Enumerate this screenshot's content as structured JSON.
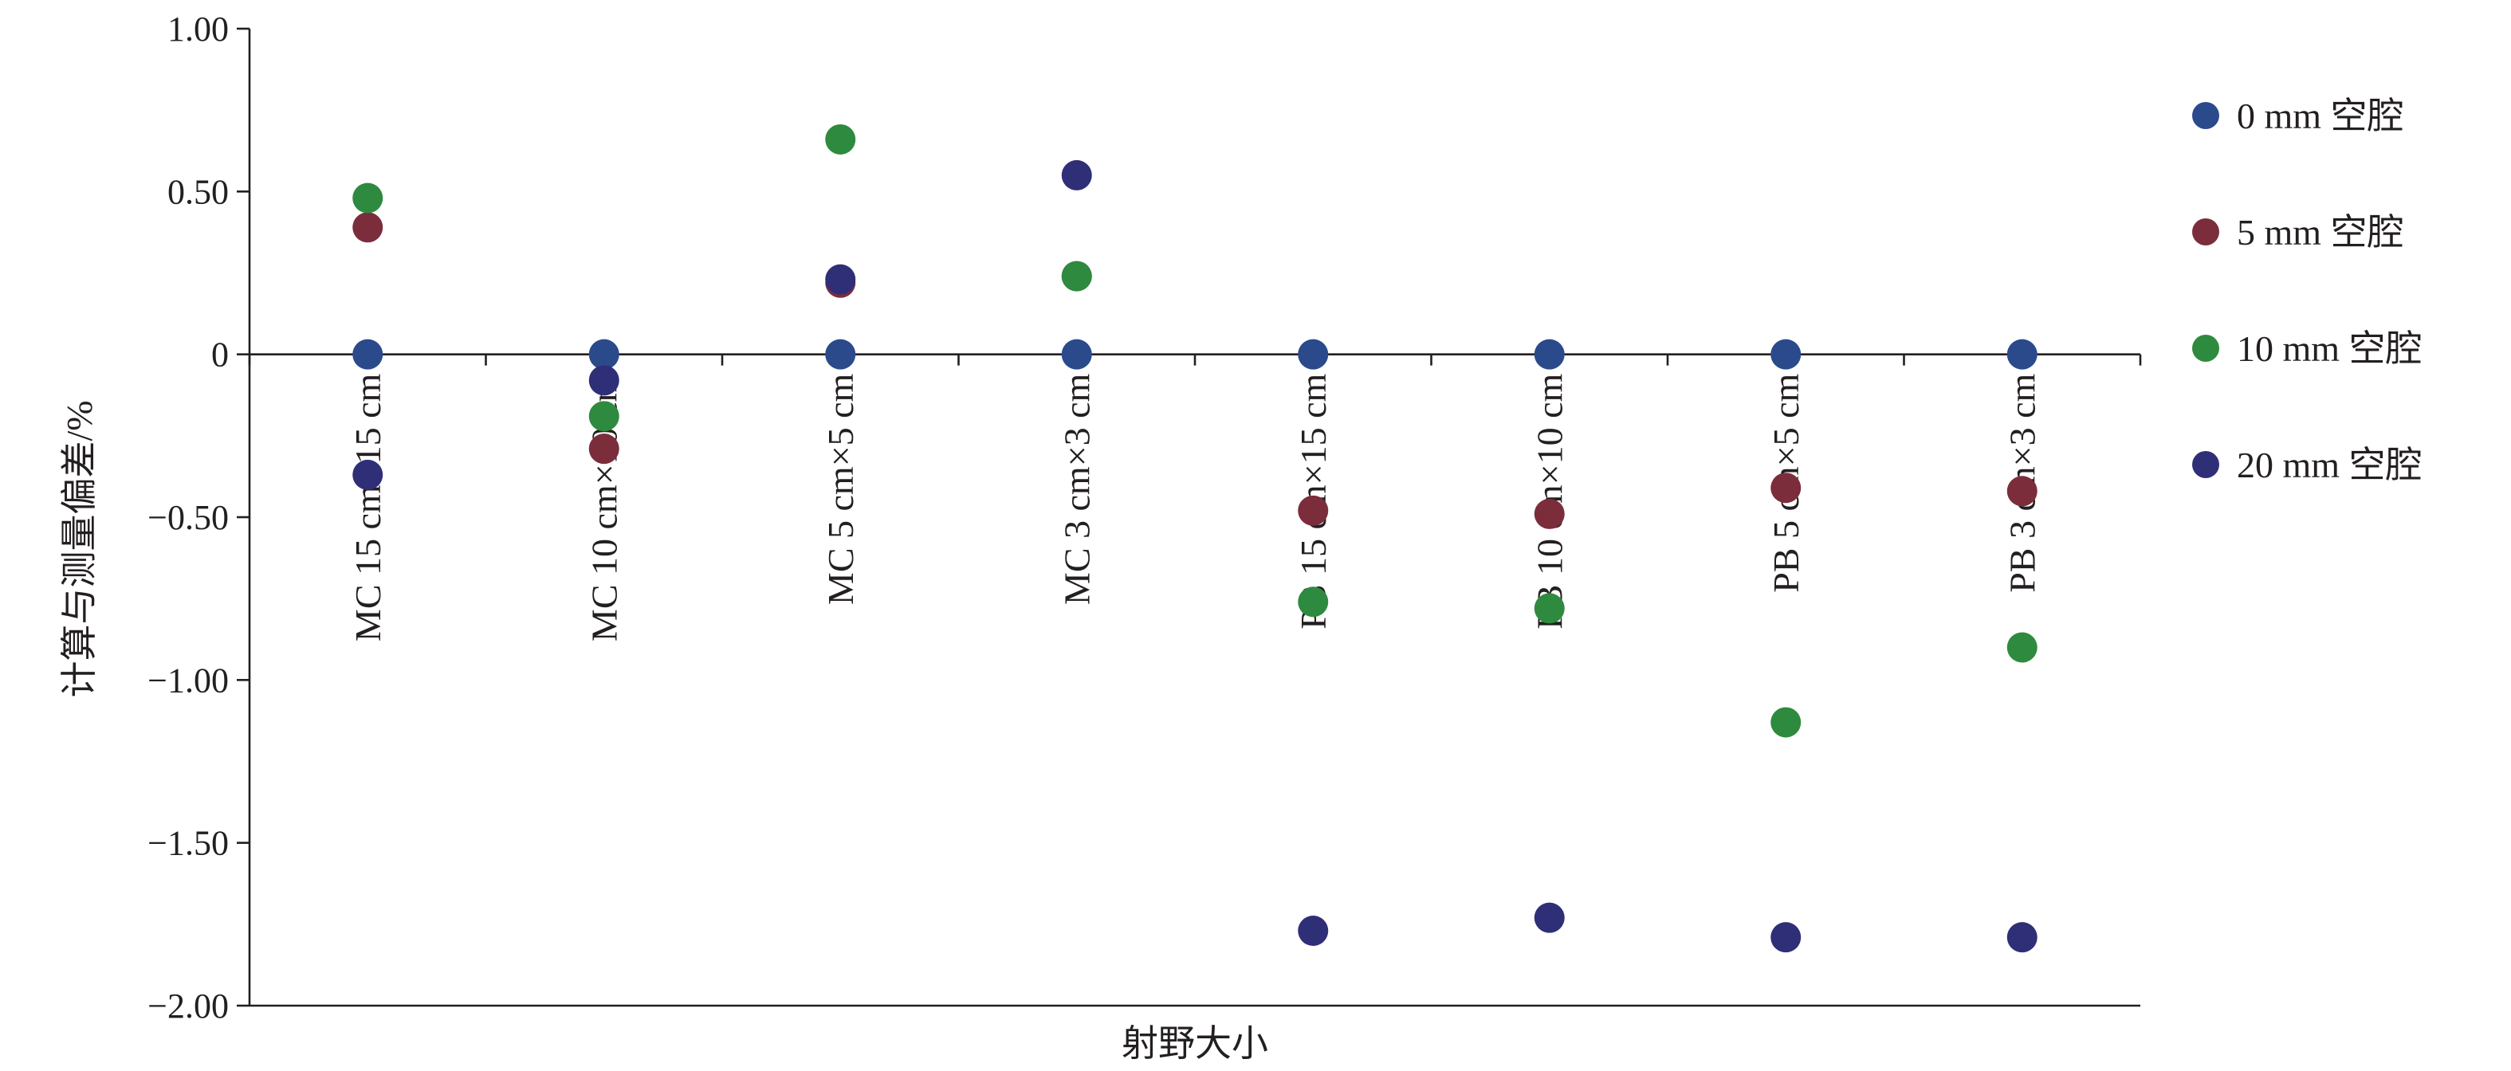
{
  "chart_data": {
    "type": "scatter",
    "title": "",
    "xlabel": "射野大小",
    "ylabel": "计算与测量偏差/%",
    "ylim": [
      -2.0,
      1.0
    ],
    "yticks": [
      1.0,
      0.5,
      0,
      -0.5,
      -1.0,
      -1.5,
      -2.0
    ],
    "ytick_labels": [
      "1.00",
      "0.50",
      "0",
      "−0.50",
      "−1.00",
      "−1.50",
      "−2.00"
    ],
    "categories": [
      "MC 15 cm×15 cm",
      "MC 10 cm×10 cm",
      "MC 5 cm×5 cm",
      "MC 3 cm×3 cm",
      "PB 15 cm×15 cm",
      "PB 10 cm×10 cm",
      "PB 5 cm×5 cm",
      "PB 3 cm×3 cm"
    ],
    "grid": false,
    "legend_position": "right",
    "series": [
      {
        "name": "0 mm 空腔",
        "color": "#2b4a8c",
        "values": [
          0,
          0,
          0,
          0,
          0,
          0,
          0,
          0
        ]
      },
      {
        "name": "5 mm 空腔",
        "color": "#7b2d3b",
        "values": [
          0.39,
          -0.29,
          0.22,
          0.24,
          -0.48,
          -0.49,
          -0.41,
          -0.42
        ]
      },
      {
        "name": "10 mm 空腔",
        "color": "#2e8a3e",
        "values": [
          0.48,
          -0.19,
          0.66,
          0.24,
          -0.76,
          -0.78,
          -1.13,
          -0.9
        ]
      },
      {
        "name": "20 mm 空腔",
        "color": "#2f2f78",
        "values": [
          -0.37,
          -0.08,
          0.23,
          0.55,
          -1.77,
          -1.73,
          -1.79,
          -1.79
        ]
      }
    ]
  }
}
